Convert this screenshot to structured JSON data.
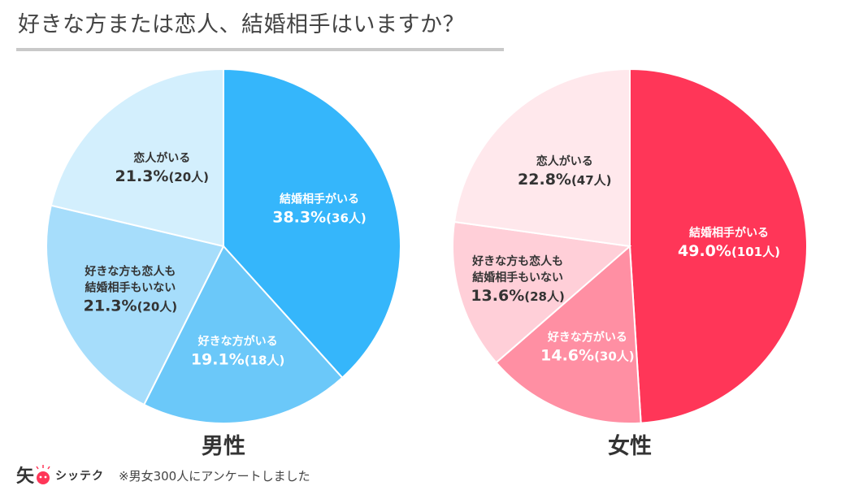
{
  "title": "好きな方または恋人、結婚相手はいますか？",
  "footer": {
    "logo_glyph": "矢",
    "logo_text": "シッテク",
    "note": "※男女300人にアンケートしました"
  },
  "chart_data": [
    {
      "type": "pie",
      "title": "男性",
      "start": "top, clockwise",
      "slices": [
        {
          "label": "結婚相手がいる",
          "label_lines": [
            "結婚相手がいる"
          ],
          "percent": 38.3,
          "count": 36,
          "value_text": "38.3%",
          "count_text": "(36人)",
          "color": "#35b6fb"
        },
        {
          "label": "好きな方がいる",
          "label_lines": [
            "好きな方がいる"
          ],
          "percent": 19.1,
          "count": 18,
          "value_text": "19.1%",
          "count_text": "(18人)",
          "color": "#6bc8f9"
        },
        {
          "label": "好きな方も恋人も結婚相手もいない",
          "label_lines": [
            "好きな方も恋人も",
            "結婚相手もいない"
          ],
          "percent": 21.3,
          "count": 20,
          "value_text": "21.3%",
          "count_text": "(20人)",
          "color": "#a6ddfb"
        },
        {
          "label": "恋人がいる",
          "label_lines": [
            "恋人がいる"
          ],
          "percent": 21.3,
          "count": 20,
          "value_text": "21.3%",
          "count_text": "(20人)",
          "color": "#d3effd"
        }
      ]
    },
    {
      "type": "pie",
      "title": "女性",
      "start": "top, clockwise",
      "slices": [
        {
          "label": "結婚相手がいる",
          "label_lines": [
            "結婚相手がいる"
          ],
          "percent": 49.0,
          "count": 101,
          "value_text": "49.0%",
          "count_text": "(101人)",
          "color": "#ff3658"
        },
        {
          "label": "好きな方がいる",
          "label_lines": [
            "好きな方がいる"
          ],
          "percent": 14.6,
          "count": 30,
          "value_text": "14.6%",
          "count_text": "(30人)",
          "color": "#ff8fa3"
        },
        {
          "label": "好きな方も恋人も結婚相手もいない",
          "label_lines": [
            "好きな方も恋人も",
            "結婚相手もいない"
          ],
          "percent": 13.6,
          "count": 28,
          "value_text": "13.6%",
          "count_text": "(28人)",
          "color": "#ffcfd8"
        },
        {
          "label": "恋人がいる",
          "label_lines": [
            "恋人がいる"
          ],
          "percent": 22.8,
          "count": 47,
          "value_text": "22.8%",
          "count_text": "(47人)",
          "color": "#ffe8ec"
        }
      ]
    }
  ]
}
